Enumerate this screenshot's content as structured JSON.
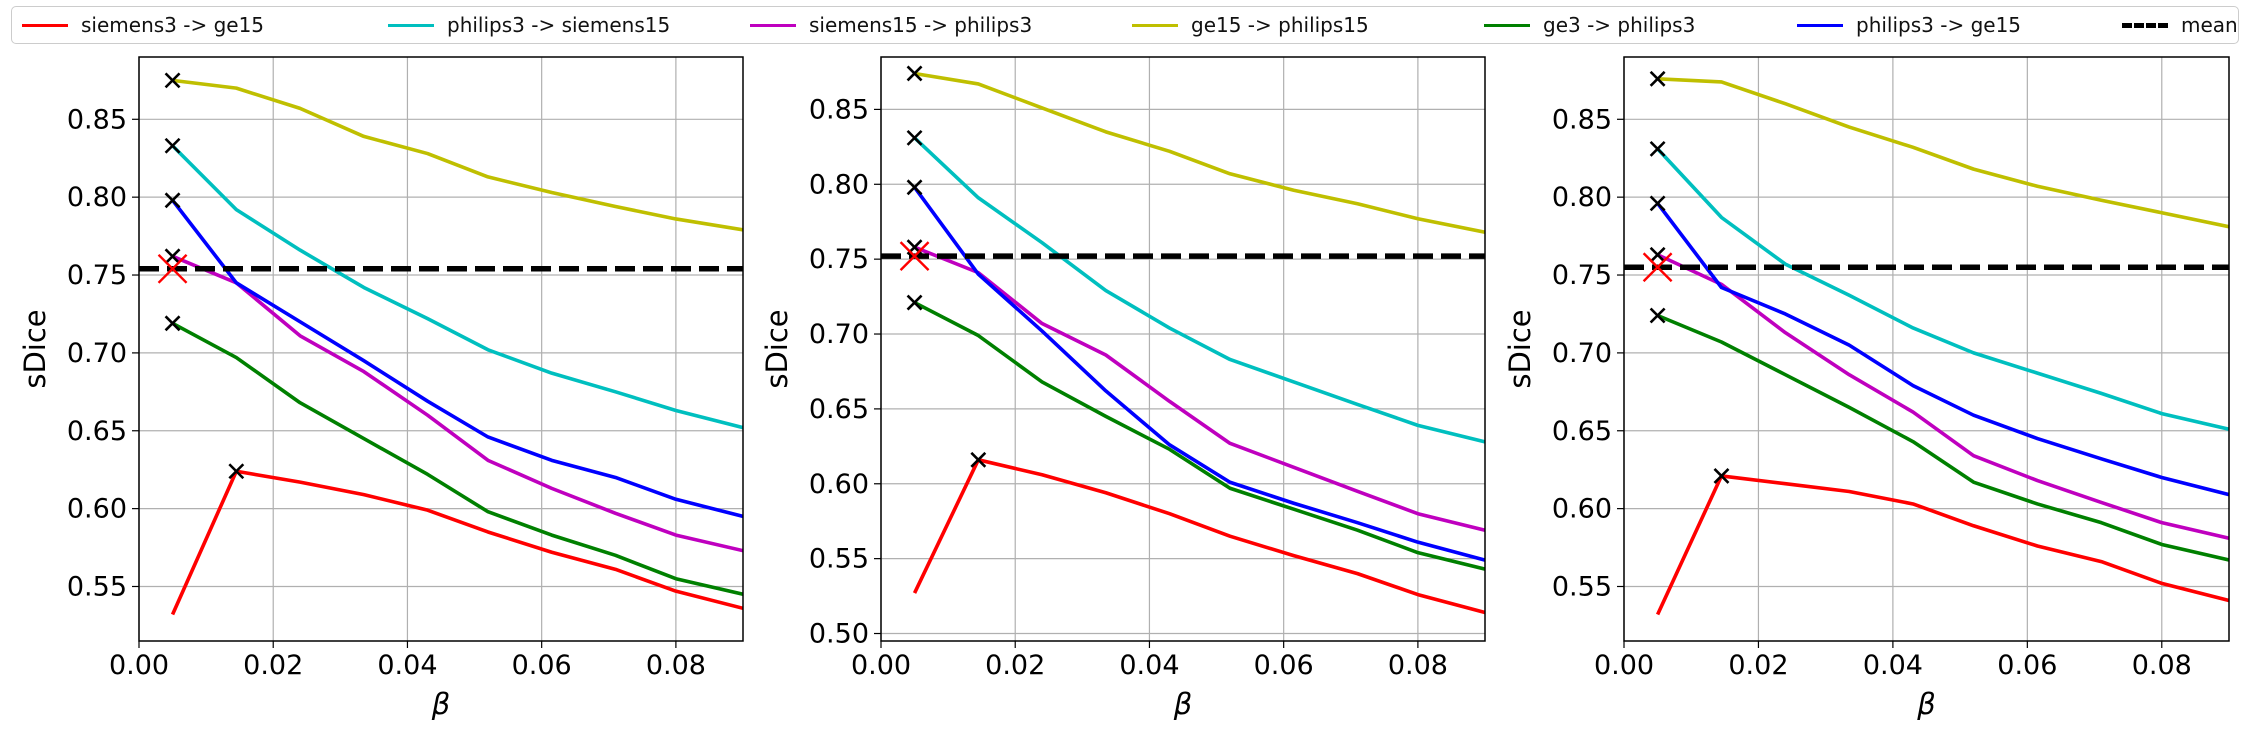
{
  "legend": [
    {
      "label": "siemens3 -> ge15",
      "color": "#ff0000",
      "dashed": false
    },
    {
      "label": "philips3 -> siemens15",
      "color": "#00bfbf",
      "dashed": false
    },
    {
      "label": "siemens15 -> philips3",
      "color": "#bf00bf",
      "dashed": false
    },
    {
      "label": "ge15 -> philips15",
      "color": "#bfbf00",
      "dashed": false
    },
    {
      "label": "ge3 -> philips3",
      "color": "#008000",
      "dashed": false
    },
    {
      "label": "philips3 -> ge15",
      "color": "#0000ff",
      "dashed": false
    },
    {
      "label": "mean",
      "color": "#000000",
      "dashed": true
    }
  ],
  "chart_data": [
    {
      "type": "line",
      "xlabel": "β",
      "ylabel": "sDice",
      "xlim": [
        0.0,
        0.09
      ],
      "ylim": [
        0.515,
        0.89
      ],
      "xticks": [
        "0.00",
        "0.02",
        "0.04",
        "0.06",
        "0.08"
      ],
      "xtick_values": [
        0.0,
        0.02,
        0.04,
        0.06,
        0.08
      ],
      "yticks": [
        "0.55",
        "0.60",
        "0.65",
        "0.70",
        "0.75",
        "0.80",
        "0.85"
      ],
      "ytick_values": [
        0.55,
        0.6,
        0.65,
        0.7,
        0.75,
        0.8,
        0.85
      ],
      "grid": true,
      "x": [
        0.005,
        0.0145,
        0.024,
        0.0335,
        0.043,
        0.052,
        0.0615,
        0.071,
        0.08,
        0.09
      ],
      "series": [
        {
          "name": "siemens3 -> ge15",
          "values": [
            0.532,
            0.624,
            0.617,
            0.609,
            0.599,
            0.585,
            0.572,
            0.561,
            0.547,
            0.536
          ],
          "best_index": 1
        },
        {
          "name": "philips3 -> siemens15",
          "values": [
            0.833,
            0.792,
            0.766,
            0.742,
            0.722,
            0.702,
            0.687,
            0.675,
            0.663,
            0.652
          ],
          "best_index": 0
        },
        {
          "name": "siemens15 -> philips3",
          "values": [
            0.762,
            0.745,
            0.711,
            0.688,
            0.66,
            0.631,
            0.613,
            0.597,
            0.583,
            0.573
          ],
          "best_index": 0
        },
        {
          "name": "ge15 -> philips15",
          "values": [
            0.875,
            0.87,
            0.857,
            0.839,
            0.828,
            0.813,
            0.803,
            0.794,
            0.786,
            0.779
          ],
          "best_index": 0
        },
        {
          "name": "ge3 -> philips3",
          "values": [
            0.719,
            0.697,
            0.668,
            0.645,
            0.622,
            0.598,
            0.583,
            0.57,
            0.555,
            0.545
          ],
          "best_index": 0
        },
        {
          "name": "philips3 -> ge15",
          "values": [
            0.798,
            0.745,
            0.72,
            0.695,
            0.669,
            0.646,
            0.631,
            0.62,
            0.606,
            0.595
          ],
          "best_index": 0
        }
      ],
      "mean_value": 0.754,
      "mean_best": {
        "x": 0.005,
        "y": 0.754
      }
    },
    {
      "type": "line",
      "xlabel": "β",
      "ylabel": "sDice",
      "xlim": [
        0.0,
        0.09
      ],
      "ylim": [
        0.495,
        0.885
      ],
      "xticks": [
        "0.00",
        "0.02",
        "0.04",
        "0.06",
        "0.08"
      ],
      "xtick_values": [
        0.0,
        0.02,
        0.04,
        0.06,
        0.08
      ],
      "yticks": [
        "0.50",
        "0.55",
        "0.60",
        "0.65",
        "0.70",
        "0.75",
        "0.80",
        "0.85"
      ],
      "ytick_values": [
        0.5,
        0.55,
        0.6,
        0.65,
        0.7,
        0.75,
        0.8,
        0.85
      ],
      "grid": true,
      "x": [
        0.005,
        0.0145,
        0.024,
        0.0335,
        0.043,
        0.052,
        0.0615,
        0.071,
        0.08,
        0.09
      ],
      "series": [
        {
          "name": "siemens3 -> ge15",
          "values": [
            0.527,
            0.616,
            0.606,
            0.594,
            0.58,
            0.565,
            0.552,
            0.54,
            0.526,
            0.514
          ],
          "best_index": 1
        },
        {
          "name": "philips3 -> siemens15",
          "values": [
            0.831,
            0.791,
            0.761,
            0.729,
            0.704,
            0.683,
            0.668,
            0.653,
            0.639,
            0.628
          ],
          "best_index": 0
        },
        {
          "name": "siemens15 -> philips3",
          "values": [
            0.758,
            0.741,
            0.707,
            0.686,
            0.655,
            0.627,
            0.611,
            0.595,
            0.58,
            0.569
          ],
          "best_index": 0
        },
        {
          "name": "ge15 -> philips15",
          "values": [
            0.874,
            0.867,
            0.851,
            0.835,
            0.822,
            0.807,
            0.796,
            0.787,
            0.777,
            0.768
          ],
          "best_index": 0
        },
        {
          "name": "ge3 -> philips3",
          "values": [
            0.721,
            0.699,
            0.668,
            0.645,
            0.623,
            0.597,
            0.583,
            0.569,
            0.554,
            0.543
          ],
          "best_index": 0
        },
        {
          "name": "philips3 -> ge15",
          "values": [
            0.798,
            0.74,
            0.702,
            0.662,
            0.626,
            0.601,
            0.587,
            0.574,
            0.561,
            0.549
          ],
          "best_index": 0
        }
      ],
      "mean_value": 0.752,
      "mean_best": {
        "x": 0.005,
        "y": 0.752
      }
    },
    {
      "type": "line",
      "xlabel": "β",
      "ylabel": "sDice",
      "xlim": [
        0.0,
        0.09
      ],
      "ylim": [
        0.515,
        0.89
      ],
      "xticks": [
        "0.00",
        "0.02",
        "0.04",
        "0.06",
        "0.08"
      ],
      "xtick_values": [
        0.0,
        0.02,
        0.04,
        0.06,
        0.08
      ],
      "yticks": [
        "0.55",
        "0.60",
        "0.65",
        "0.70",
        "0.75",
        "0.80",
        "0.85"
      ],
      "ytick_values": [
        0.55,
        0.6,
        0.65,
        0.7,
        0.75,
        0.8,
        0.85
      ],
      "grid": true,
      "x": [
        0.005,
        0.0145,
        0.024,
        0.0335,
        0.043,
        0.052,
        0.0615,
        0.071,
        0.08,
        0.09
      ],
      "series": [
        {
          "name": "siemens3 -> ge15",
          "values": [
            0.532,
            0.621,
            0.616,
            0.611,
            0.603,
            0.589,
            0.576,
            0.566,
            0.552,
            0.541
          ],
          "best_index": 1
        },
        {
          "name": "philips3 -> siemens15",
          "values": [
            0.831,
            0.787,
            0.757,
            0.737,
            0.716,
            0.7,
            0.687,
            0.674,
            0.661,
            0.651
          ],
          "best_index": 0
        },
        {
          "name": "siemens15 -> philips3",
          "values": [
            0.763,
            0.744,
            0.713,
            0.686,
            0.662,
            0.634,
            0.618,
            0.604,
            0.591,
            0.581
          ],
          "best_index": 0
        },
        {
          "name": "ge15 -> philips15",
          "values": [
            0.876,
            0.874,
            0.86,
            0.845,
            0.832,
            0.818,
            0.807,
            0.798,
            0.79,
            0.781
          ],
          "best_index": 0
        },
        {
          "name": "ge3 -> philips3",
          "values": [
            0.724,
            0.707,
            0.686,
            0.665,
            0.643,
            0.617,
            0.603,
            0.591,
            0.577,
            0.567
          ],
          "best_index": 0
        },
        {
          "name": "philips3 -> ge15",
          "values": [
            0.796,
            0.742,
            0.725,
            0.705,
            0.679,
            0.66,
            0.645,
            0.632,
            0.62,
            0.609
          ],
          "best_index": 0
        }
      ],
      "mean_value": 0.755,
      "mean_best": {
        "x": 0.005,
        "y": 0.755
      }
    }
  ]
}
